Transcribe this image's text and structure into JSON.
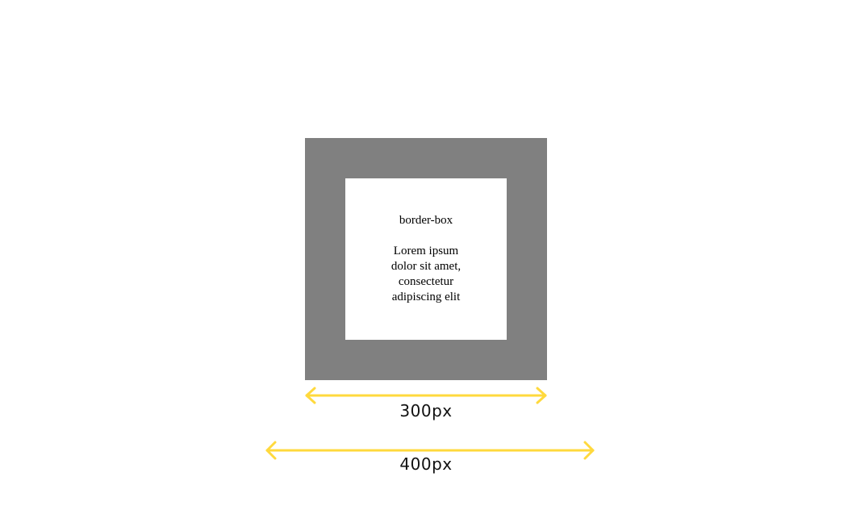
{
  "box": {
    "title": "border-box",
    "body_text": "Lorem ipsum dolor sit amet, consectetur adipiscing elit",
    "border_color": "#808080",
    "content_color": "#ffffff"
  },
  "dimensions": {
    "inner_label": "300px",
    "outer_label": "400px",
    "arrow_color": "#ffd93d"
  }
}
